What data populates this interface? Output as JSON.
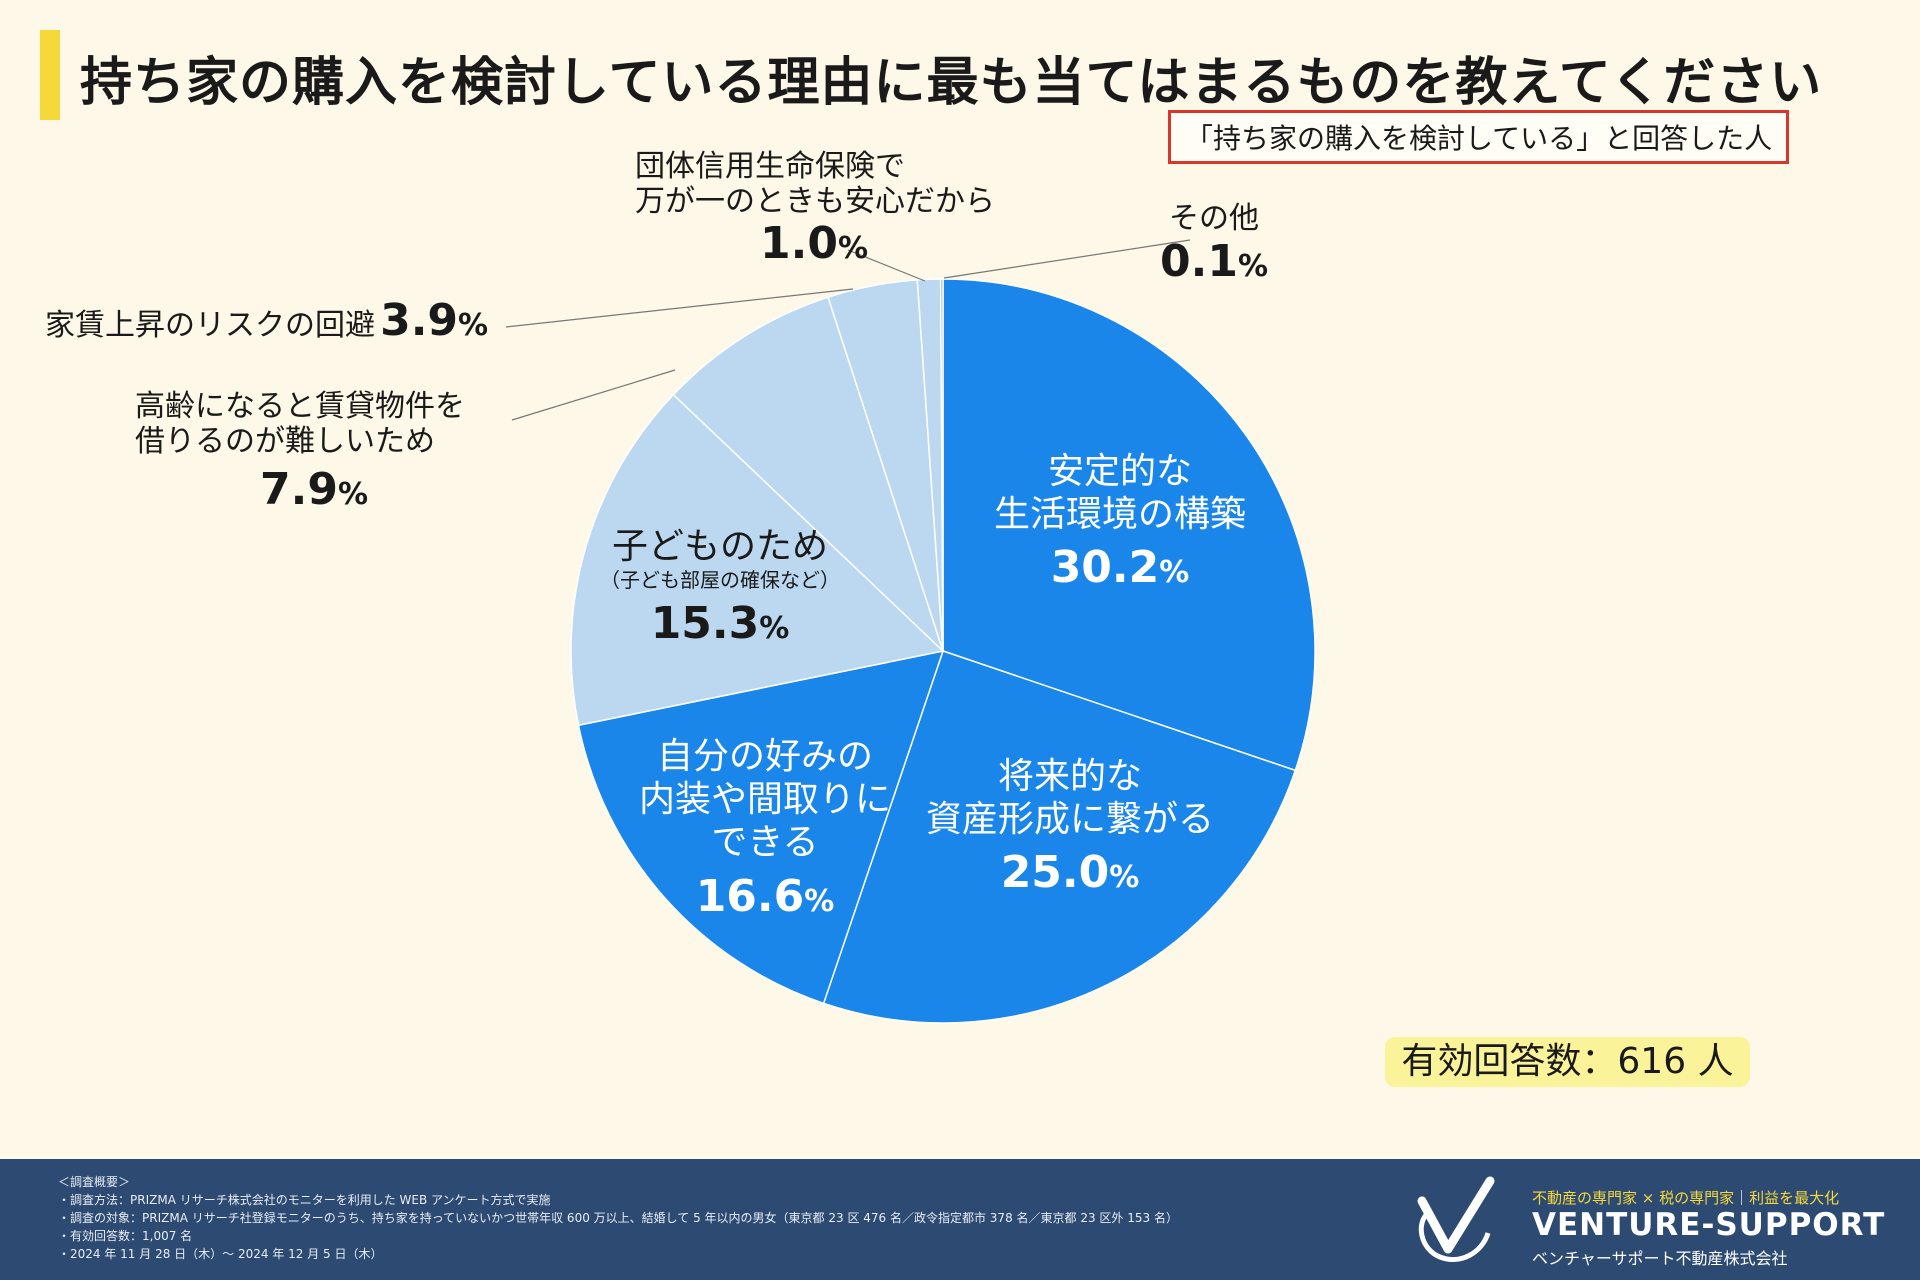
{
  "title": "持ち家の購入を検討している理由に最も当てはまるものを教えてください",
  "subtitle": "「持ち家の購入を検討している」と回答した人",
  "chart_data": {
    "type": "pie",
    "title": "持ち家の購入を検討している理由に最も当てはまるものを教えてください",
    "unit": "%",
    "slices": [
      {
        "label": "安定的な生活環境の構築",
        "value": 30.2,
        "value_label": "30.2",
        "color": "#1a86e9"
      },
      {
        "label": "将来的な資産形成に繋がる",
        "value": 25.0,
        "value_label": "25.0",
        "color": "#1a86e9"
      },
      {
        "label": "自分の好みの内装や間取りにできる",
        "value": 16.6,
        "value_label": "16.6",
        "color": "#1a86e9"
      },
      {
        "label": "子どものため（子ども部屋の確保など）",
        "value": 15.3,
        "value_label": "15.3",
        "color": "#bcd8f0"
      },
      {
        "label": "高齢になると賃貸物件を借りるのが難しいため",
        "value": 7.9,
        "value_label": "7.9",
        "color": "#bcd8f0"
      },
      {
        "label": "家賃上昇のリスクの回避",
        "value": 3.9,
        "value_label": "3.9",
        "color": "#bcd8f0"
      },
      {
        "label": "団体信用生命保険で万が一のときも安心だから",
        "value": 1.0,
        "value_label": "1.0",
        "color": "#bcd8f0"
      },
      {
        "label": "その他",
        "value": 0.1,
        "value_label": "0.1",
        "color": "#9a9a9a"
      }
    ]
  },
  "labels": {
    "s0": {
      "line1": "安定的な",
      "line2": "生活環境の構築"
    },
    "s1": {
      "line1": "将来的な",
      "line2": "資産形成に繋がる"
    },
    "s2": {
      "line1": "自分の好みの",
      "line2": "内装や間取りに",
      "line3": "できる"
    },
    "s3": {
      "line1": "子どものため",
      "sub": "（子ども部屋の確保など）"
    },
    "s4": {
      "line1": "高齢になると賃貸物件を",
      "line2": "借りるのが難しいため"
    },
    "s5": {
      "line1": "家賃上昇のリスクの回避"
    },
    "s6": {
      "line1": "団体信用生命保険で",
      "line2": "万が一のときも安心だから"
    },
    "s7": {
      "line1": "その他"
    }
  },
  "respondents": "有効回答数：616 人",
  "footer": {
    "notes": [
      "＜調査概要＞",
      "・調査方法：PRIZMA リサーチ株式会社のモニターを利用した WEB アンケート方式で実施",
      "・調査の対象：PRIZMA リサーチ社登録モニターのうち、持ち家を持っていないかつ世帯年収 600 万以上、結婚して 5 年以内の男女（東京都 23 区 476 名／政令指定都市 378 名／東京都 23 区外 153 名）",
      "・有効回答数：1,007 名",
      "・2024 年 11 月 28 日（木）～ 2024 年 12 月 5 日（木）"
    ],
    "tagline_a": "不動産の専門家 × 税の専門家",
    "tagline_sep": "｜",
    "tagline_b": "利益を最大化",
    "brand": "VENTURE-SUPPORT",
    "company": "ベンチャーサポート不動産株式会社"
  }
}
